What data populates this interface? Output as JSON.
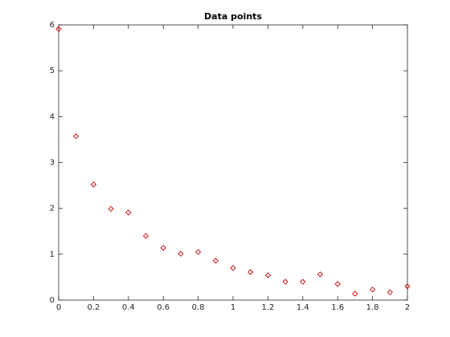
{
  "chart_data": {
    "type": "scatter",
    "title": "Data points",
    "x": [
      0,
      0.1,
      0.2,
      0.3,
      0.4,
      0.5,
      0.6,
      0.7,
      0.8,
      0.9,
      1.0,
      1.1,
      1.2,
      1.3,
      1.4,
      1.5,
      1.6,
      1.7,
      1.8,
      1.9,
      2.0
    ],
    "values": [
      5.91,
      3.57,
      2.52,
      1.99,
      1.91,
      1.4,
      1.14,
      1.01,
      1.05,
      0.86,
      0.7,
      0.61,
      0.54,
      0.4,
      0.4,
      0.56,
      0.35,
      0.14,
      0.23,
      0.17,
      0.3
    ],
    "color": "#cc0000",
    "marker": "diamond",
    "xlim": [
      0,
      2
    ],
    "xticks": [
      0,
      0.2,
      0.4,
      0.6,
      0.8,
      1,
      1.2,
      1.4,
      1.6,
      1.8,
      2
    ],
    "ylim": [
      0,
      6
    ],
    "yticks": [
      0,
      1,
      2,
      3,
      4,
      5,
      6
    ],
    "grid": false
  }
}
